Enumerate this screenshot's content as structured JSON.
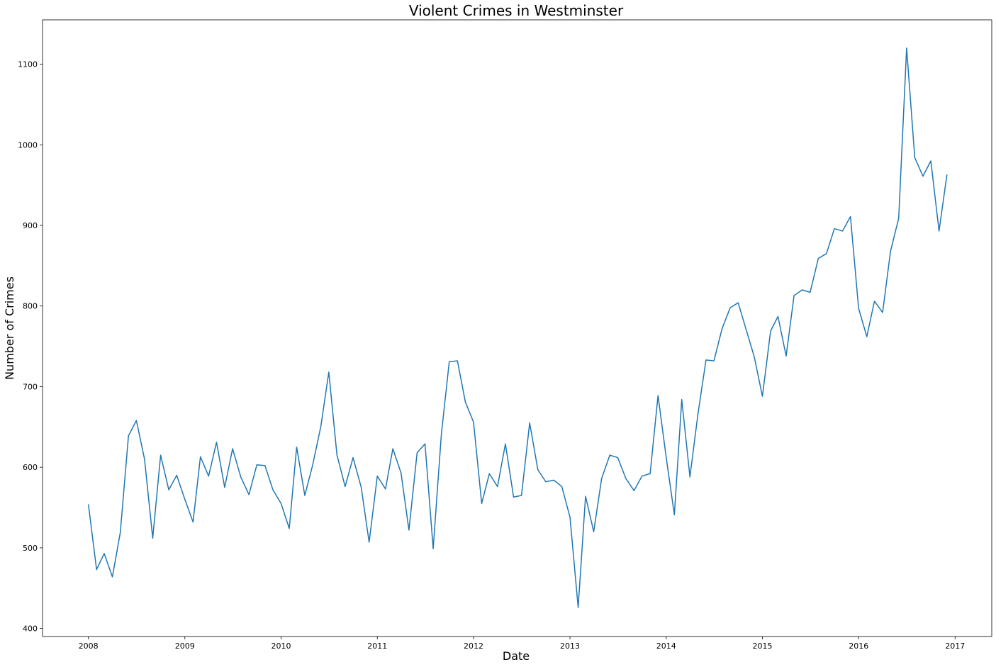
{
  "chart_data": {
    "type": "line",
    "title": "Violent Crimes in Westminster",
    "xlabel": "Date",
    "ylabel": "Number of Crimes",
    "xlim": [
      "2007-07-11",
      "2017-05-20"
    ],
    "ylim": [
      390,
      1155
    ],
    "xticks": [
      "2008",
      "2009",
      "2010",
      "2011",
      "2012",
      "2013",
      "2014",
      "2015",
      "2016",
      "2017"
    ],
    "yticks": [
      400,
      500,
      600,
      700,
      800,
      900,
      1000,
      1100
    ],
    "grid": false,
    "line_color": "#1f77b4",
    "series": [
      {
        "x": [
          "2008-01",
          "2008-02",
          "2008-03",
          "2008-04",
          "2008-05",
          "2008-06",
          "2008-07",
          "2008-08",
          "2008-09",
          "2008-10",
          "2008-11",
          "2008-12",
          "2009-01",
          "2009-02",
          "2009-03",
          "2009-04",
          "2009-05",
          "2009-06",
          "2009-07",
          "2009-08",
          "2009-09",
          "2009-10",
          "2009-11",
          "2009-12",
          "2010-01",
          "2010-02",
          "2010-03",
          "2010-04",
          "2010-05",
          "2010-06",
          "2010-07",
          "2010-08",
          "2010-09",
          "2010-10",
          "2010-11",
          "2010-12",
          "2011-01",
          "2011-02",
          "2011-03",
          "2011-04",
          "2011-05",
          "2011-06",
          "2011-07",
          "2011-08",
          "2011-09",
          "2011-10",
          "2011-11",
          "2011-12",
          "2012-01",
          "2012-02",
          "2012-03",
          "2012-04",
          "2012-05",
          "2012-06",
          "2012-07",
          "2012-08",
          "2012-09",
          "2012-10",
          "2012-11",
          "2012-12",
          "2013-01",
          "2013-02",
          "2013-03",
          "2013-04",
          "2013-05",
          "2013-06",
          "2013-07",
          "2013-08",
          "2013-09",
          "2013-10",
          "2013-11",
          "2013-12",
          "2014-01",
          "2014-02",
          "2014-03",
          "2014-04",
          "2014-05",
          "2014-06",
          "2014-07",
          "2014-08",
          "2014-09",
          "2014-10",
          "2014-11",
          "2014-12",
          "2015-01",
          "2015-02",
          "2015-03",
          "2015-04",
          "2015-05",
          "2015-06",
          "2015-07",
          "2015-08",
          "2015-09",
          "2015-10",
          "2015-11",
          "2015-12",
          "2016-01",
          "2016-02",
          "2016-03",
          "2016-04",
          "2016-05",
          "2016-06",
          "2016-07",
          "2016-08",
          "2016-09",
          "2016-10",
          "2016-11",
          "2016-12"
        ],
        "y": [
          554,
          473,
          493,
          464,
          519,
          639,
          658,
          610,
          512,
          615,
          572,
          590,
          560,
          532,
          613,
          589,
          631,
          575,
          623,
          588,
          566,
          603,
          602,
          572,
          555,
          524,
          625,
          565,
          603,
          651,
          718,
          615,
          576,
          612,
          575,
          507,
          589,
          573,
          623,
          593,
          522,
          618,
          629,
          499,
          641,
          731,
          732,
          681,
          656,
          555,
          592,
          576,
          629,
          563,
          565,
          655,
          597,
          582,
          584,
          576,
          538,
          426,
          564,
          520,
          586,
          615,
          612,
          586,
          571,
          589,
          592,
          689,
          612,
          541,
          684,
          588,
          665,
          733,
          732,
          772,
          798,
          804,
          770,
          737,
          688,
          769,
          787,
          738,
          813,
          820,
          817,
          859,
          865,
          896,
          893,
          911,
          797,
          762,
          806,
          792,
          868,
          909,
          1120,
          984,
          961,
          980,
          893,
          963
        ]
      }
    ]
  }
}
